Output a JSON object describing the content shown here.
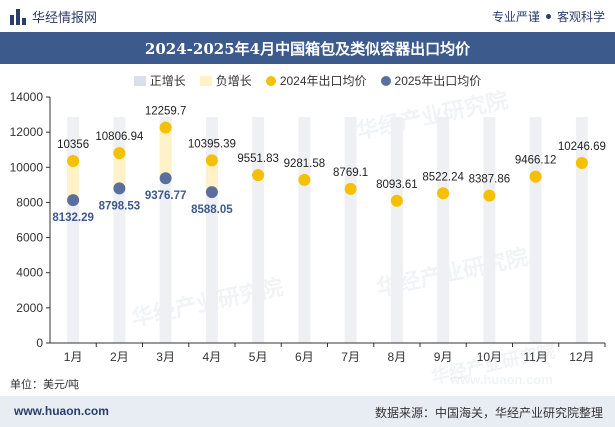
{
  "header": {
    "brand": "华经情报网",
    "slogan_left": "专业严谨",
    "slogan_right": "客观科学"
  },
  "title": "2024-2025年4月中国箱包及类似容器出口均价",
  "legend": [
    {
      "label": "正增长",
      "kind": "rect",
      "color": "#d9e0ec"
    },
    {
      "label": "负增长",
      "kind": "rect",
      "color": "#fff2c8"
    },
    {
      "label": "2024年出口均价",
      "kind": "dot",
      "color": "#f5c000"
    },
    {
      "label": "2025年出口均价",
      "kind": "dot",
      "color": "#5b6f9e"
    }
  ],
  "unit": "单位：美元/吨",
  "watermark": "华经产业研究院",
  "watermark_url": "www.huaon.com",
  "footer": {
    "website": "www.huaon.com",
    "source": "数据来源：中国海关，华经产业研究院整理"
  },
  "chart_data": {
    "type": "scatter",
    "categories": [
      "1月",
      "2月",
      "3月",
      "4月",
      "5月",
      "6月",
      "7月",
      "8月",
      "9月",
      "10月",
      "11月",
      "12月"
    ],
    "ylim": [
      0,
      14000
    ],
    "yticks": [
      0,
      2000,
      4000,
      6000,
      8000,
      10000,
      12000,
      14000
    ],
    "grid": false,
    "legend_position": "top",
    "series": [
      {
        "name": "2024年出口均价",
        "color": "#f5c000",
        "values": [
          10356,
          10806.94,
          12259.7,
          10395.39,
          9551.83,
          9281.58,
          8769.1,
          8093.61,
          8522.24,
          8387.86,
          9466.12,
          10246.69
        ],
        "labels": [
          "10356",
          "10806.94",
          "12259.7",
          "10395.39",
          "9551.83",
          "9281.58",
          "8769.1",
          "8093.61",
          "8522.24",
          "8387.86",
          "9466.12",
          "10246.69"
        ]
      },
      {
        "name": "2025年出口均价",
        "color": "#5b6f9e",
        "values": [
          8132.29,
          8798.53,
          9376.77,
          8588.05
        ],
        "labels": [
          "8132.29",
          "8798.53",
          "9376.77",
          "8588.05"
        ]
      }
    ],
    "growth_bands": [
      {
        "category": "1月",
        "from": 8132.29,
        "to": 10356,
        "sign": "负增长"
      },
      {
        "category": "2月",
        "from": 8798.53,
        "to": 10806.94,
        "sign": "负增长"
      },
      {
        "category": "3月",
        "from": 9376.77,
        "to": 12259.7,
        "sign": "负增长"
      },
      {
        "category": "4月",
        "from": 8588.05,
        "to": 10395.39,
        "sign": "负增长"
      }
    ]
  }
}
